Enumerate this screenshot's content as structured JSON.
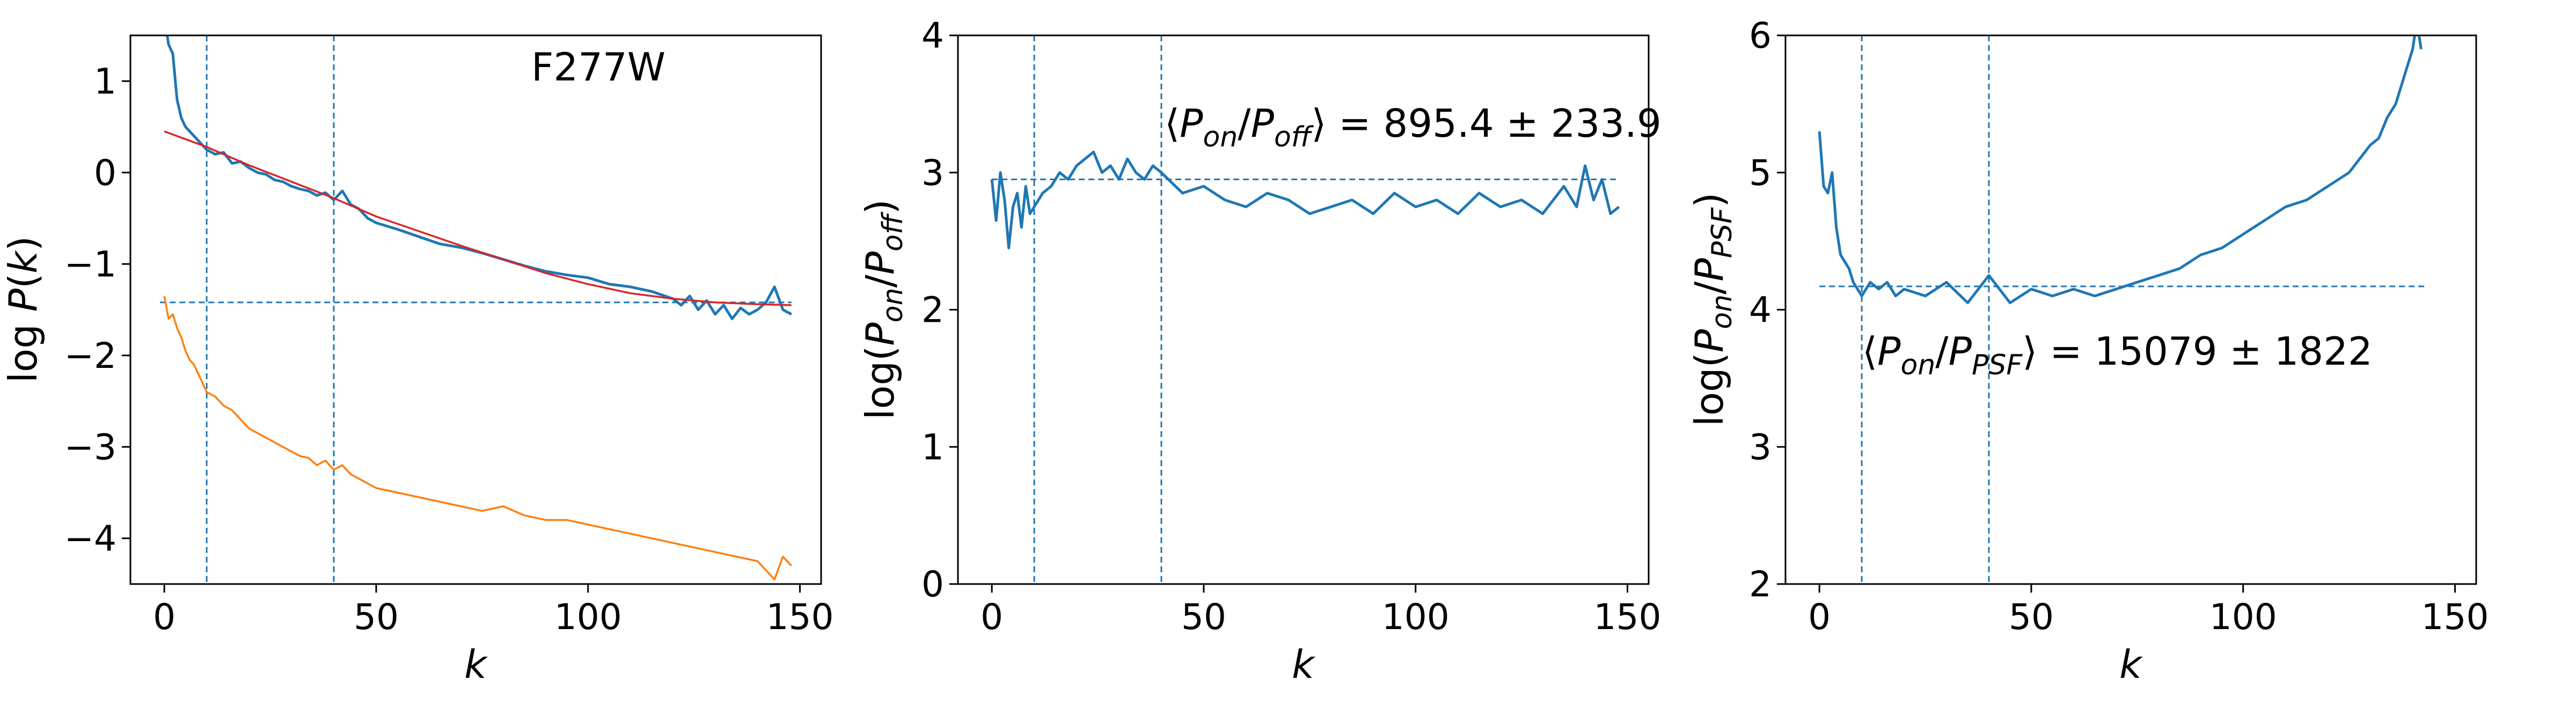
{
  "chart_data": [
    {
      "type": "line",
      "title": "",
      "annotation": "F277W",
      "xlabel": "k",
      "ylabel": "log P(k)",
      "xlim": [
        -8,
        155
      ],
      "ylim": [
        -4.5,
        1.5
      ],
      "xticks": [
        0,
        50,
        100,
        150
      ],
      "yticks": [
        -4,
        -3,
        -2,
        -1,
        0,
        1
      ],
      "ytick_labels": [
        "−4",
        "−3",
        "−2",
        "−1",
        "0",
        "1"
      ],
      "vlines": [
        10,
        40
      ],
      "hline": -1.42,
      "colors": {
        "blue": "#1f77b4",
        "orange": "#ff7f0e",
        "red": "#d62728"
      },
      "series": [
        {
          "color": "blue",
          "x": [
            0,
            1,
            2,
            3,
            4,
            5,
            6,
            7,
            8,
            9,
            10,
            12,
            14,
            16,
            18,
            20,
            22,
            24,
            26,
            28,
            30,
            32,
            34,
            36,
            38,
            40,
            42,
            44,
            46,
            48,
            50,
            55,
            60,
            65,
            70,
            75,
            80,
            85,
            90,
            95,
            100,
            105,
            110,
            115,
            120,
            122,
            124,
            126,
            128,
            130,
            132,
            134,
            136,
            138,
            140,
            142,
            144,
            146,
            148
          ],
          "y": [
            1.7,
            1.4,
            1.3,
            0.8,
            0.6,
            0.5,
            0.45,
            0.4,
            0.35,
            0.3,
            0.25,
            0.2,
            0.22,
            0.1,
            0.12,
            0.05,
            0.0,
            -0.02,
            -0.08,
            -0.1,
            -0.15,
            -0.18,
            -0.2,
            -0.25,
            -0.22,
            -0.3,
            -0.2,
            -0.35,
            -0.4,
            -0.5,
            -0.55,
            -0.62,
            -0.7,
            -0.78,
            -0.82,
            -0.88,
            -0.95,
            -1.02,
            -1.08,
            -1.12,
            -1.15,
            -1.22,
            -1.25,
            -1.3,
            -1.38,
            -1.45,
            -1.35,
            -1.5,
            -1.4,
            -1.55,
            -1.45,
            -1.6,
            -1.48,
            -1.55,
            -1.5,
            -1.42,
            -1.25,
            -1.5,
            -1.55
          ]
        },
        {
          "color": "red",
          "x": [
            0,
            10,
            20,
            30,
            40,
            50,
            60,
            70,
            80,
            90,
            100,
            110,
            120,
            130,
            140,
            148
          ],
          "y": [
            0.45,
            0.28,
            0.08,
            -0.1,
            -0.28,
            -0.48,
            -0.64,
            -0.8,
            -0.95,
            -1.1,
            -1.22,
            -1.32,
            -1.38,
            -1.42,
            -1.44,
            -1.45
          ]
        },
        {
          "color": "orange",
          "x": [
            0,
            1,
            2,
            3,
            4,
            5,
            6,
            7,
            8,
            9,
            10,
            12,
            14,
            16,
            18,
            20,
            22,
            24,
            26,
            28,
            30,
            32,
            34,
            36,
            38,
            40,
            42,
            44,
            46,
            48,
            50,
            55,
            60,
            65,
            70,
            75,
            80,
            85,
            90,
            95,
            100,
            105,
            110,
            115,
            120,
            125,
            130,
            135,
            140,
            142,
            144,
            146,
            148
          ],
          "y": [
            -1.35,
            -1.6,
            -1.55,
            -1.7,
            -1.8,
            -1.95,
            -2.05,
            -2.1,
            -2.2,
            -2.3,
            -2.4,
            -2.45,
            -2.55,
            -2.6,
            -2.7,
            -2.8,
            -2.85,
            -2.9,
            -2.95,
            -3.0,
            -3.05,
            -3.1,
            -3.12,
            -3.2,
            -3.15,
            -3.25,
            -3.2,
            -3.3,
            -3.35,
            -3.4,
            -3.45,
            -3.5,
            -3.55,
            -3.6,
            -3.65,
            -3.7,
            -3.65,
            -3.75,
            -3.8,
            -3.8,
            -3.85,
            -3.9,
            -3.95,
            -4.0,
            -4.05,
            -4.1,
            -4.15,
            -4.2,
            -4.25,
            -4.35,
            -4.45,
            -4.2,
            -4.3
          ]
        }
      ]
    },
    {
      "type": "line",
      "title": "",
      "annotation": "⟨P_on/P_off⟩ = 895.4 ± 233.9",
      "xlabel": "k",
      "ylabel": "log(P_on/P_off)",
      "xlim": [
        -8,
        155
      ],
      "ylim": [
        0,
        4
      ],
      "xticks": [
        0,
        50,
        100,
        150
      ],
      "yticks": [
        0,
        1,
        2,
        3,
        4
      ],
      "ytick_labels": [
        "0",
        "1",
        "2",
        "3",
        "4"
      ],
      "vlines": [
        10,
        40
      ],
      "hline": 2.95,
      "colors": {
        "blue": "#1f77b4"
      },
      "series": [
        {
          "color": "blue",
          "x": [
            0,
            1,
            2,
            3,
            4,
            5,
            6,
            7,
            8,
            9,
            10,
            12,
            14,
            16,
            18,
            20,
            22,
            24,
            26,
            28,
            30,
            32,
            34,
            36,
            38,
            40,
            45,
            50,
            55,
            60,
            65,
            70,
            75,
            80,
            85,
            90,
            95,
            100,
            105,
            110,
            115,
            120,
            125,
            130,
            135,
            138,
            140,
            142,
            144,
            146,
            148
          ],
          "y": [
            2.95,
            2.65,
            3.0,
            2.8,
            2.45,
            2.75,
            2.85,
            2.6,
            2.9,
            2.7,
            2.75,
            2.85,
            2.9,
            3.0,
            2.95,
            3.05,
            3.1,
            3.15,
            3.0,
            3.05,
            2.95,
            3.1,
            3.0,
            2.95,
            3.05,
            3.0,
            2.85,
            2.9,
            2.8,
            2.75,
            2.85,
            2.8,
            2.7,
            2.75,
            2.8,
            2.7,
            2.85,
            2.75,
            2.8,
            2.7,
            2.85,
            2.75,
            2.8,
            2.7,
            2.9,
            2.75,
            3.05,
            2.8,
            2.95,
            2.7,
            2.75
          ]
        }
      ]
    },
    {
      "type": "line",
      "title": "",
      "annotation": "⟨P_on/P_PSF⟩ = 15079 ± 1822",
      "xlabel": "k",
      "ylabel": "log(P_on/P_PSF)",
      "xlim": [
        -8,
        155
      ],
      "ylim": [
        2,
        6
      ],
      "xticks": [
        0,
        50,
        100,
        150
      ],
      "yticks": [
        2,
        3,
        4,
        5,
        6
      ],
      "ytick_labels": [
        "2",
        "3",
        "4",
        "5",
        "6"
      ],
      "vlines": [
        10,
        40
      ],
      "hline": 4.17,
      "colors": {
        "blue": "#1f77b4"
      },
      "series": [
        {
          "color": "blue",
          "x": [
            0,
            1,
            2,
            3,
            4,
            5,
            6,
            7,
            8,
            9,
            10,
            12,
            14,
            16,
            18,
            20,
            25,
            30,
            35,
            40,
            45,
            50,
            55,
            60,
            65,
            70,
            75,
            80,
            85,
            90,
            95,
            100,
            105,
            110,
            115,
            120,
            125,
            130,
            132,
            134,
            136,
            138,
            140,
            141,
            142
          ],
          "y": [
            5.3,
            4.9,
            4.85,
            5.0,
            4.6,
            4.4,
            4.35,
            4.3,
            4.2,
            4.15,
            4.1,
            4.2,
            4.15,
            4.2,
            4.1,
            4.15,
            4.1,
            4.2,
            4.05,
            4.25,
            4.05,
            4.15,
            4.1,
            4.15,
            4.1,
            4.15,
            4.2,
            4.25,
            4.3,
            4.4,
            4.45,
            4.55,
            4.65,
            4.75,
            4.8,
            4.9,
            5.0,
            5.2,
            5.25,
            5.4,
            5.5,
            5.7,
            5.9,
            6.1,
            5.9
          ]
        }
      ]
    }
  ]
}
